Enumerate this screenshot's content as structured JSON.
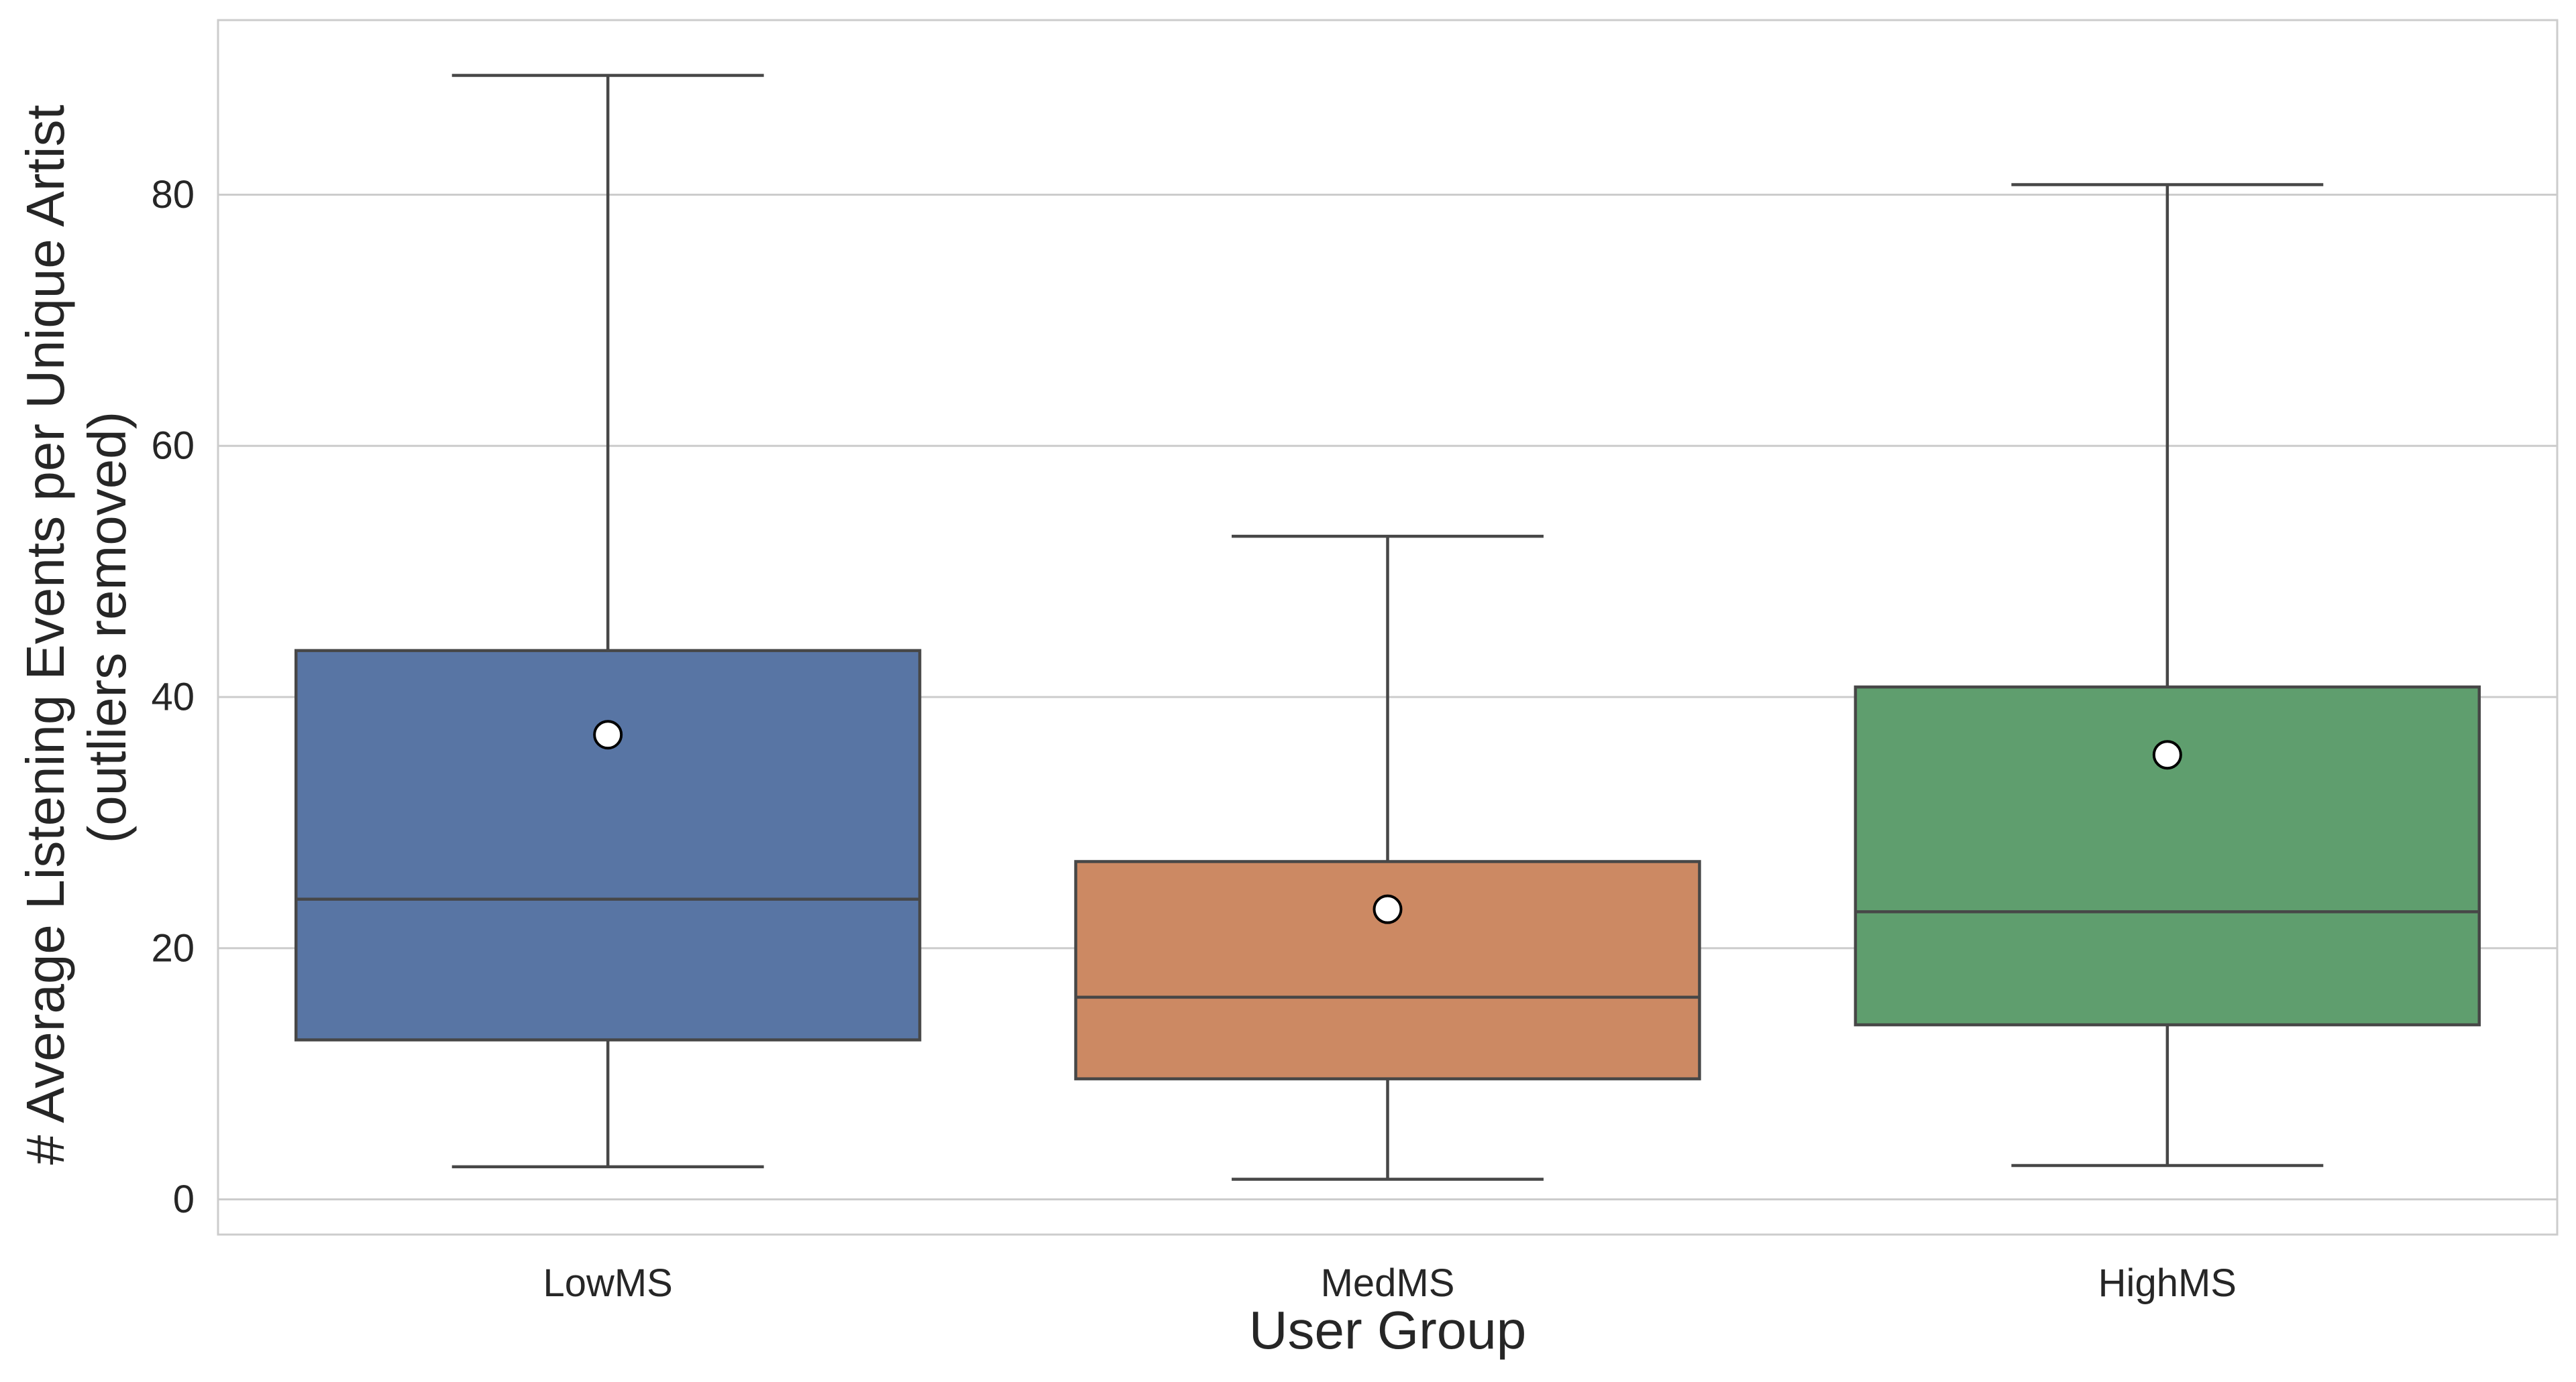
{
  "chart_data": {
    "type": "box",
    "categories": [
      "LowMS",
      "MedMS",
      "HighMS"
    ],
    "series": [
      {
        "category": "LowMS",
        "whisker_low": 2.6,
        "q1": 12.7,
        "median": 23.9,
        "q3": 43.7,
        "whisker_high": 89.5,
        "mean": 37.0,
        "color": "#5875a4"
      },
      {
        "category": "MedMS",
        "whisker_low": 1.6,
        "q1": 9.6,
        "median": 16.1,
        "q3": 26.9,
        "whisker_high": 52.8,
        "mean": 23.1,
        "color": "#cc8963"
      },
      {
        "category": "HighMS",
        "whisker_low": 2.7,
        "q1": 13.9,
        "median": 22.9,
        "q3": 40.8,
        "whisker_high": 80.8,
        "mean": 35.4,
        "color": "#5f9e6e"
      }
    ],
    "title": "",
    "xlabel": "User Group",
    "ylabel_lines": [
      "# Average Listening Events per Unique Artist",
      "(outliers removed)"
    ],
    "y_ticks": [
      0,
      20,
      40,
      60,
      80
    ],
    "ylim": [
      -2.8,
      93.9
    ],
    "grid": "horizontal",
    "legend": "none",
    "colors": {
      "grid": "#cccccc",
      "frame": "#cccccc",
      "box_edge": "#474747",
      "mean_fill": "#ffffff",
      "mean_edge": "#000000",
      "text": "#262626"
    }
  }
}
